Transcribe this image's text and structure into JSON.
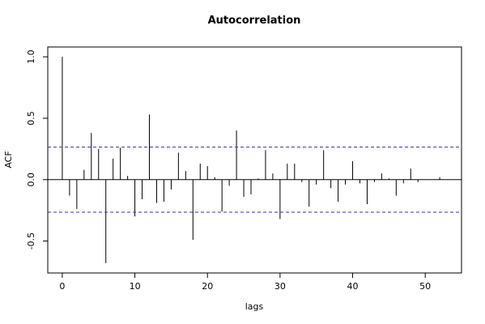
{
  "chart_data": {
    "type": "bar",
    "title": "Autocorrelation",
    "xlabel": "lags",
    "ylabel": "ACF",
    "xlim": [
      -2,
      55
    ],
    "ylim": [
      -0.76,
      1.08
    ],
    "x_ticks": [
      0,
      10,
      20,
      30,
      40,
      50
    ],
    "x_tick_labels": [
      "0",
      "10",
      "20",
      "30",
      "40",
      "50"
    ],
    "y_ticks": [
      -0.5,
      0.0,
      0.5,
      1.0
    ],
    "y_tick_labels": [
      "-0.5",
      "0.0",
      "0.5",
      "1.0"
    ],
    "confidence_band": [
      0.265,
      -0.265
    ],
    "band_color": "#3333aa",
    "line_color": "#000000",
    "grid": false,
    "lags": [
      0,
      1,
      2,
      3,
      4,
      5,
      6,
      7,
      8,
      9,
      10,
      11,
      12,
      13,
      14,
      15,
      16,
      17,
      18,
      19,
      20,
      21,
      22,
      23,
      24,
      25,
      26,
      27,
      28,
      29,
      30,
      31,
      32,
      33,
      34,
      35,
      36,
      37,
      38,
      39,
      40,
      41,
      42,
      43,
      44,
      45,
      46,
      47,
      48,
      49,
      50,
      51,
      52,
      53
    ],
    "values": [
      1.0,
      -0.13,
      -0.24,
      0.08,
      0.38,
      0.25,
      -0.68,
      0.17,
      0.26,
      0.03,
      -0.3,
      -0.16,
      0.53,
      -0.19,
      -0.18,
      -0.08,
      0.22,
      0.07,
      -0.49,
      0.13,
      0.11,
      0.02,
      -0.26,
      -0.05,
      0.4,
      -0.14,
      -0.12,
      0.01,
      0.24,
      0.05,
      -0.32,
      0.13,
      0.13,
      -0.02,
      -0.22,
      -0.04,
      0.24,
      -0.07,
      -0.18,
      -0.04,
      0.15,
      -0.03,
      -0.2,
      -0.02,
      0.05,
      0.01,
      -0.13,
      -0.03,
      0.09,
      -0.02,
      0.0,
      0.0,
      0.02,
      0.0
    ]
  }
}
